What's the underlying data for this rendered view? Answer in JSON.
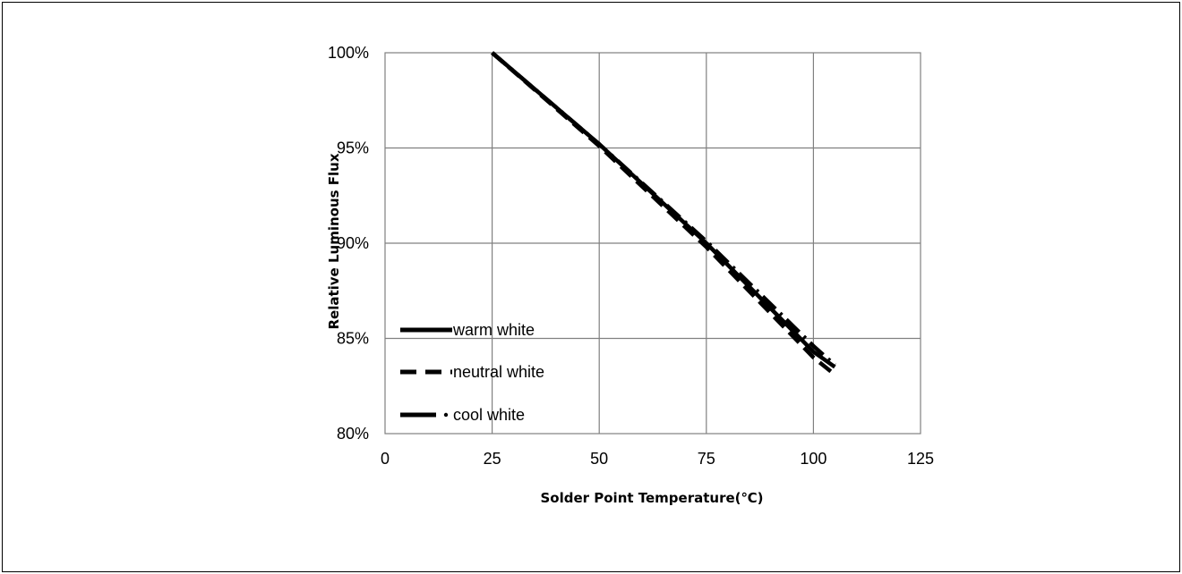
{
  "chart_data": {
    "type": "line",
    "xlabel": "Solder Point Temperature(℃)",
    "ylabel": "Relative Luminous Flux",
    "xlim": [
      0,
      125
    ],
    "ylim": [
      80,
      100
    ],
    "x_ticks": [
      "0",
      "25",
      "50",
      "75",
      "100",
      "125"
    ],
    "y_ticks": [
      "80%",
      "85%",
      "90%",
      "95%",
      "100%"
    ],
    "grid": true,
    "legend_position": "bottom-left",
    "series": [
      {
        "name": "warm white",
        "line_style": "solid",
        "color": "#000000",
        "x": [
          25,
          50,
          75,
          100,
          105
        ],
        "y": [
          100,
          95.2,
          90.0,
          84.3,
          83.5
        ]
      },
      {
        "name": "neutral white",
        "line_style": "dashed",
        "color": "#000000",
        "x": [
          25,
          50,
          75,
          100,
          105
        ],
        "y": [
          100,
          95.1,
          89.8,
          84.0,
          83.1
        ]
      },
      {
        "name": "cool white",
        "line_style": "dash-dot",
        "color": "#000000",
        "x": [
          25,
          50,
          75,
          100,
          105
        ],
        "y": [
          100,
          95.2,
          90.1,
          84.6,
          83.6
        ]
      }
    ]
  }
}
